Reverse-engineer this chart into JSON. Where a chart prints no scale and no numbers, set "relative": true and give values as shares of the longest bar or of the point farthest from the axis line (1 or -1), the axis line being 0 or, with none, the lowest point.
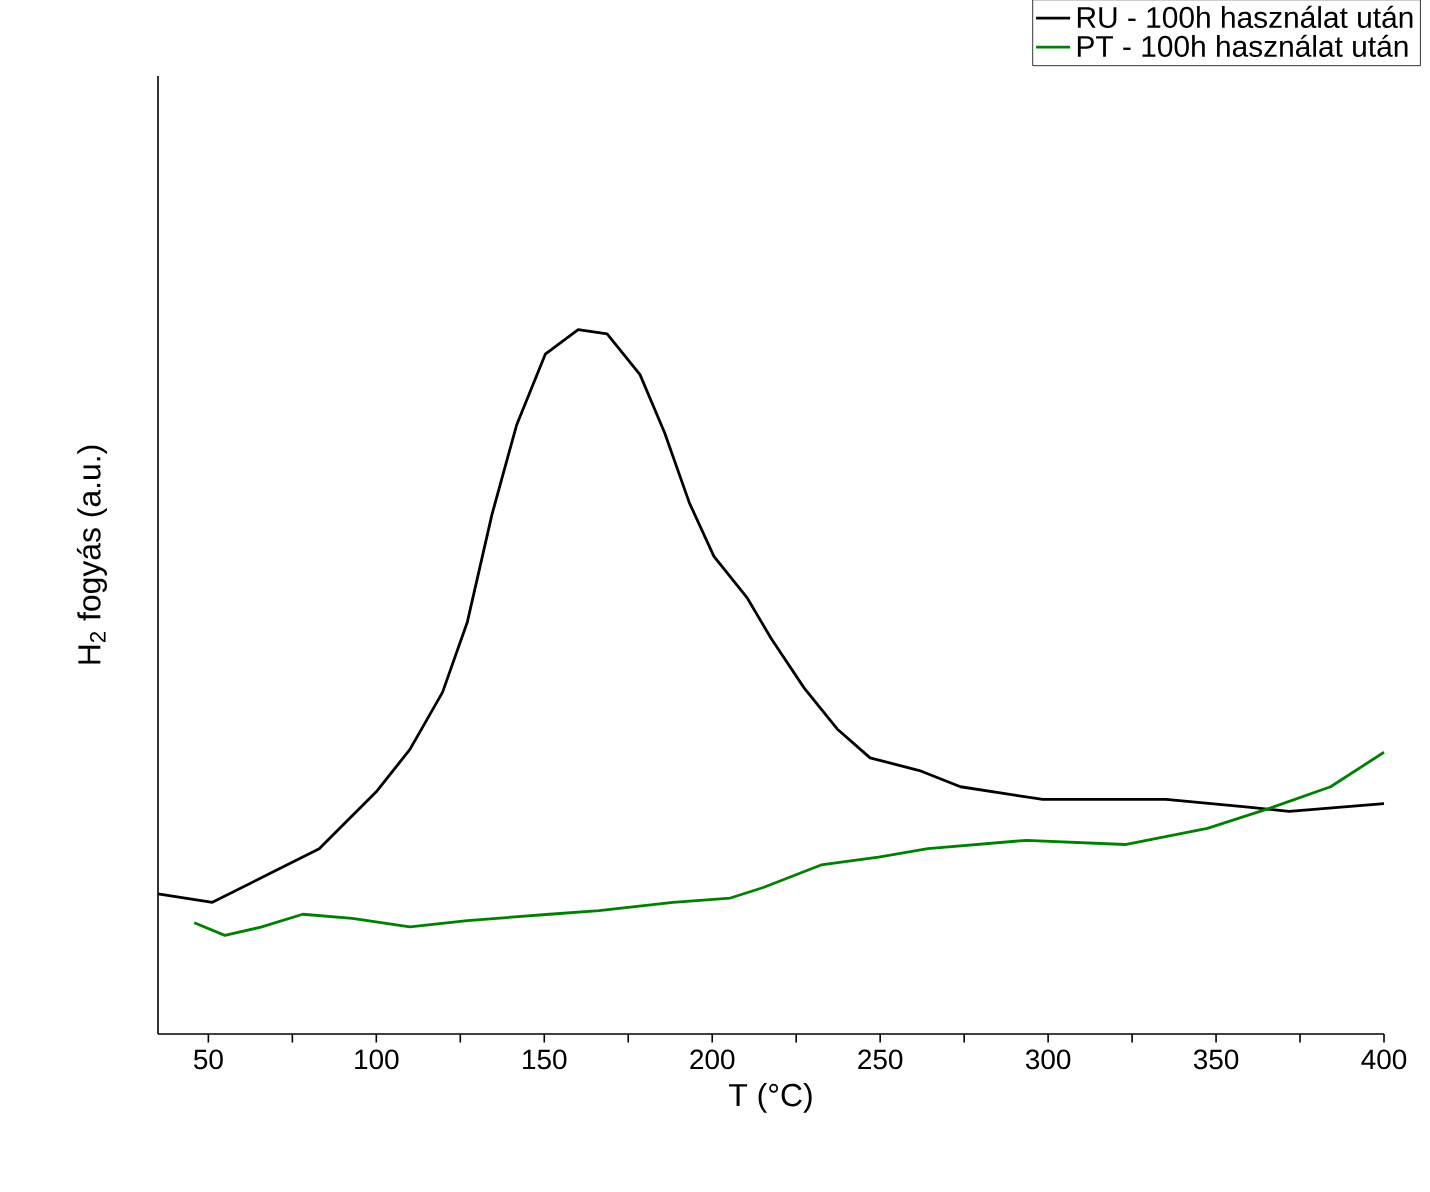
{
  "chart_data": {
    "type": "line",
    "xlabel": "T (°C)",
    "ylabel": "H$_{2}$ fogyás (a.u.)",
    "relative": true,
    "legend": "top right",
    "xlim": [
      35,
      400
    ],
    "xticks": [
      50,
      {
        "value": 75,
        "label": null
      },
      100,
      {
        "value": 125,
        "label": null
      },
      150,
      {
        "value": 175,
        "label": null
      },
      200,
      {
        "value": 225,
        "label": null
      },
      250,
      {
        "value": 275,
        "label": null
      },
      300,
      {
        "value": 325,
        "label": null
      },
      350,
      {
        "value": 375,
        "label": null
      },
      400
    ],
    "series": [
      {
        "name": "RU - 100h használat után",
        "color": "#000000",
        "x": [
          35,
          51.2,
          65.9,
          83,
          100.2,
          110,
          119.7,
          127.1,
          134.4,
          141.8,
          150.3,
          160.1,
          168.7,
          178.5,
          185.8,
          193.2,
          200.5,
          210.3,
          217.6,
          227.4,
          237.2,
          247,
          261.7,
          273.9,
          298.4,
          335.1,
          359.6,
          371.8,
          400
        ],
        "values": [
          0.199,
          0.187,
          0.222,
          0.263,
          0.345,
          0.404,
          0.485,
          0.585,
          0.737,
          0.865,
          0.965,
          1.0,
          0.994,
          0.936,
          0.854,
          0.754,
          0.678,
          0.62,
          0.561,
          0.491,
          0.433,
          0.392,
          0.374,
          0.351,
          0.333,
          0.333,
          0.322,
          0.316,
          0.327
        ]
      },
      {
        "name": "PT - 100h használat után",
        "color": "#008000",
        "x": [
          45.8,
          54.9,
          65.9,
          78.1,
          92.8,
          110,
          127.1,
          151.6,
          166.3,
          188.3,
          205.4,
          215.2,
          232.4,
          249.5,
          264.2,
          293.5,
          322.9,
          347.4,
          366.9,
          384.1,
          400
        ],
        "values": [
          0.158,
          0.14,
          0.152,
          0.17,
          0.164,
          0.152,
          0.161,
          0.17,
          0.175,
          0.187,
          0.193,
          0.208,
          0.24,
          0.251,
          0.263,
          0.275,
          0.269,
          0.292,
          0.322,
          0.351,
          0.4
        ]
      }
    ]
  }
}
